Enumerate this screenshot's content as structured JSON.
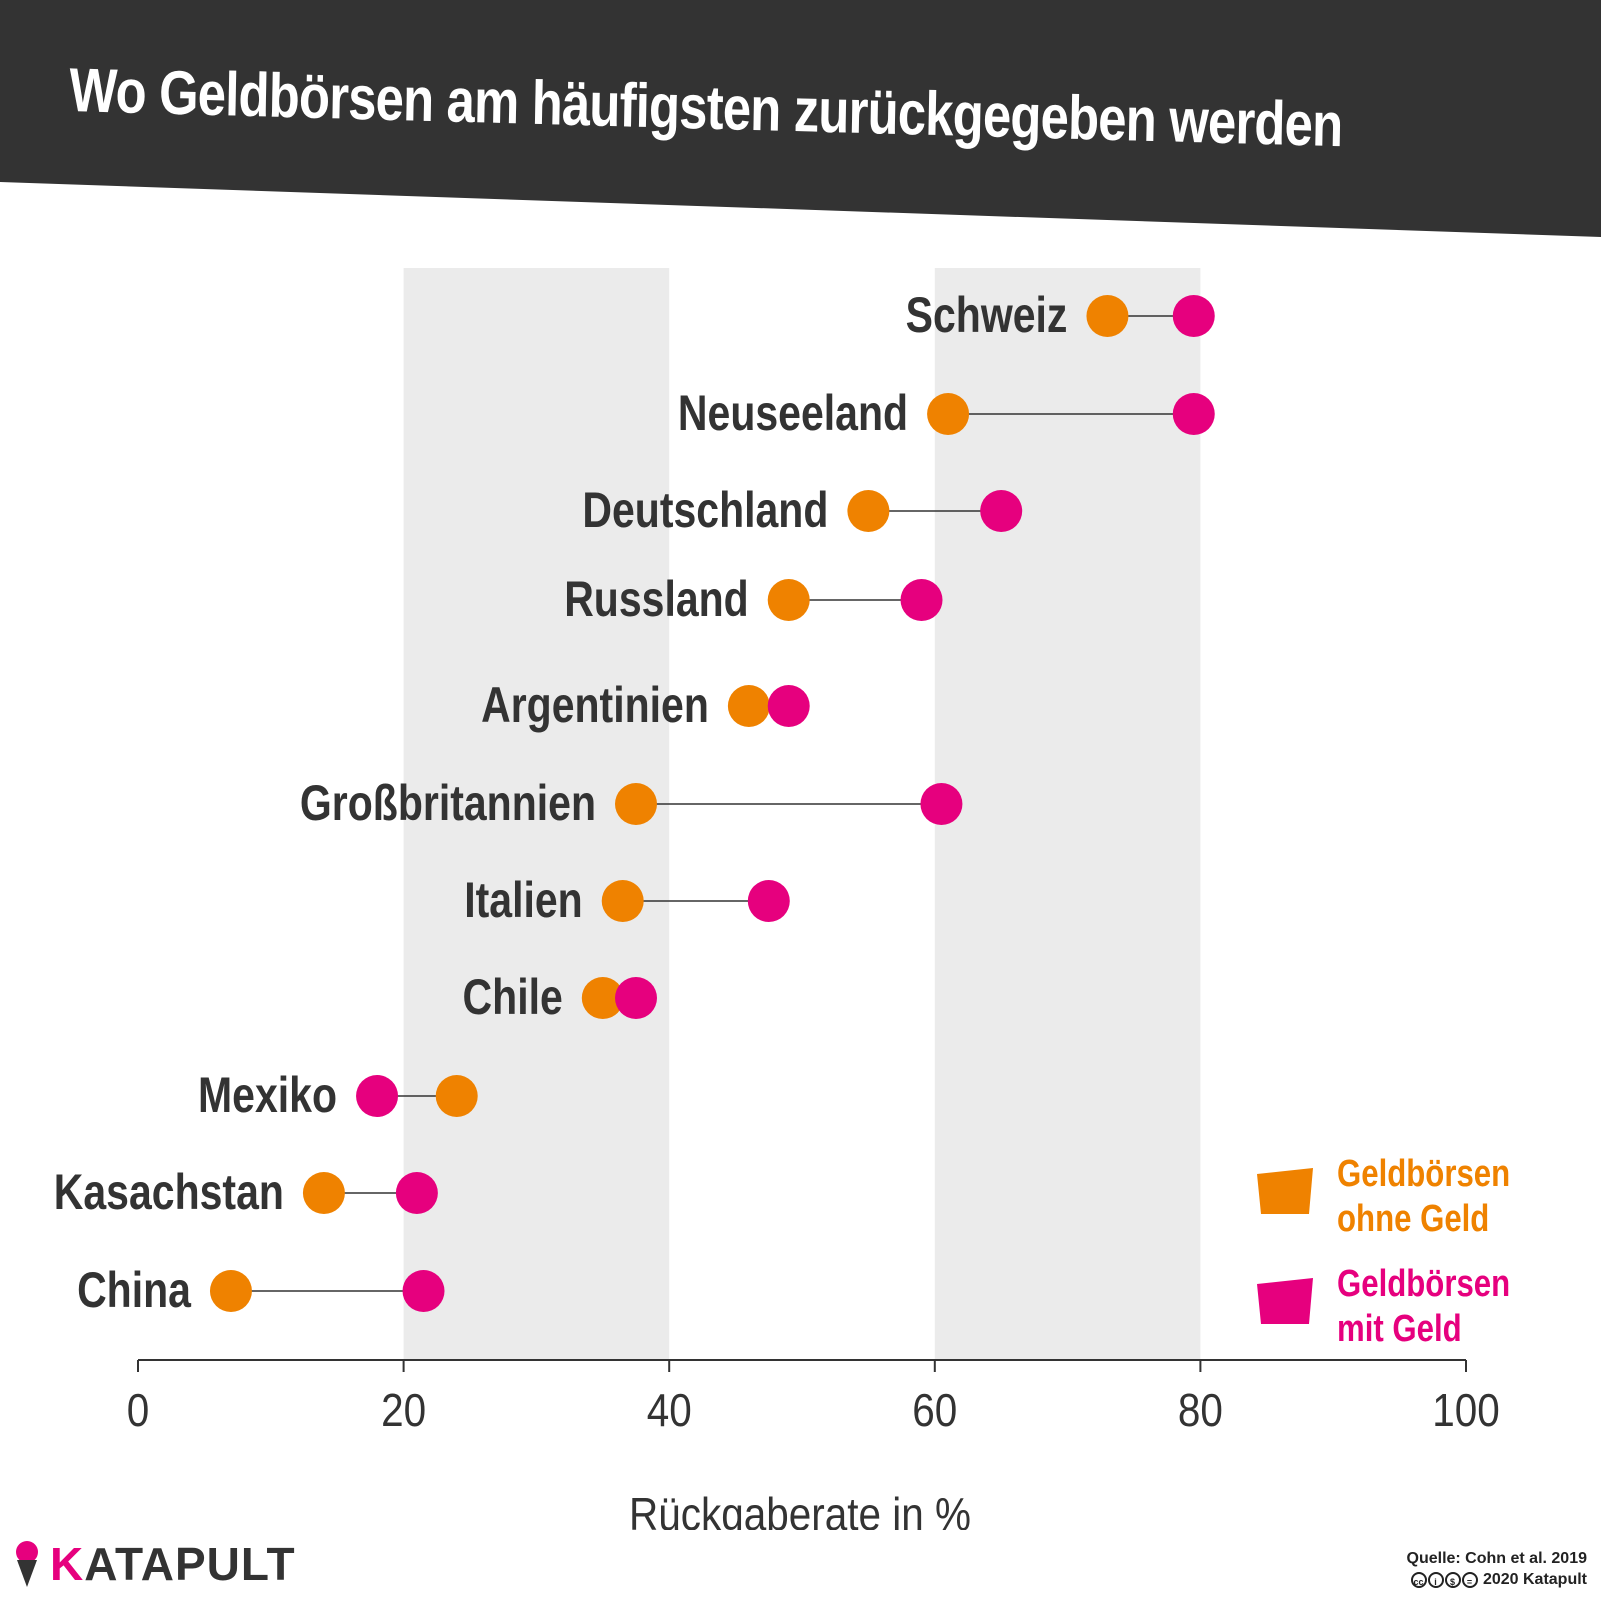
{
  "title": "Wo Geldbörsen am häufigsten zurückgegeben werden",
  "colors": {
    "header": "#333333",
    "orange": "#ef8200",
    "magenta": "#e6007e",
    "band": "#ebebeb",
    "text": "#333333"
  },
  "legend": {
    "ohne_line1": "Geldbörsen",
    "ohne_line2": "ohne Geld",
    "mit_line1": "Geldbörsen",
    "mit_line2": "mit Geld"
  },
  "footer": {
    "logo_k": "K",
    "logo_rest": "ATAPULT",
    "source": "Quelle: Cohn et al. 2019",
    "license": "2020 Katapult",
    "license_icons": [
      "cc-icon",
      "by-icon",
      "nc-icon",
      "nd-icon"
    ]
  },
  "chart_data": {
    "type": "dumbbell",
    "xlabel": "Rückgaberate in %",
    "xlim": [
      0,
      100
    ],
    "xticks": [
      0,
      20,
      40,
      60,
      80,
      100
    ],
    "shaded_bands": [
      [
        20,
        40
      ],
      [
        60,
        80
      ]
    ],
    "categories": [
      "Schweiz",
      "Neuseeland",
      "Deutschland",
      "Russland",
      "Argentinien",
      "Großbritannien",
      "Italien",
      "Chile",
      "Mexiko",
      "Kasachstan",
      "China"
    ],
    "series": [
      {
        "name": "Geldbörsen ohne Geld",
        "color": "#ef8200",
        "values": [
          73.0,
          61.0,
          55.0,
          49.0,
          46.0,
          37.5,
          36.5,
          35.0,
          24.0,
          14.0,
          7.0
        ]
      },
      {
        "name": "Geldbörsen mit Geld",
        "color": "#e6007e",
        "values": [
          79.5,
          79.5,
          65.0,
          59.0,
          49.0,
          60.5,
          47.5,
          37.5,
          18.0,
          21.0,
          21.5
        ]
      }
    ]
  }
}
